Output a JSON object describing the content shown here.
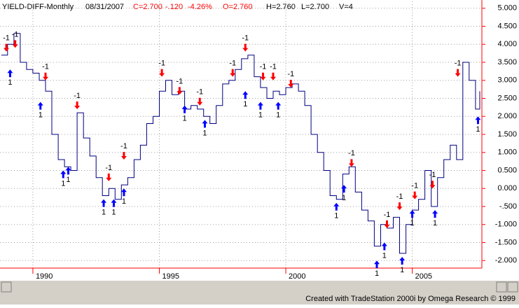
{
  "chart_data": {
    "type": "line",
    "title": "YIELD-DIFF-Monthly",
    "info": [
      {
        "text": "08/31/2007",
        "color": "#000000"
      },
      {
        "text": "C=2.700",
        "color": "#ff0000"
      },
      {
        "text": "-.120",
        "color": "#ff0000"
      },
      {
        "text": "-4.26%",
        "color": "#ff0000"
      },
      {
        "text": "O=2.760",
        "color": "#ff0000"
      },
      {
        "text": "H=2.760",
        "color": "#000000"
      },
      {
        "text": "L=2.700",
        "color": "#000000"
      },
      {
        "text": "V=4",
        "color": "#000000"
      }
    ],
    "credit": "Created with TradeStation 2000i by Omega Research © 1999",
    "color": "#000080",
    "axis_color": "#ff0000",
    "grid": true,
    "xlim": [
      1988.7,
      2007.67
    ],
    "xticks": [
      1990,
      1995,
      2000,
      2005
    ],
    "ylim": [
      -2.21,
      5.19
    ],
    "yticks": [
      {
        "value": 5,
        "label": "5.000"
      },
      {
        "value": 4.5,
        "label": "4.500"
      },
      {
        "value": 4,
        "label": "4.000"
      },
      {
        "value": 3.5,
        "label": "3.500"
      },
      {
        "value": 3,
        "label": "3.000"
      },
      {
        "value": 2.5,
        "label": "2.500"
      },
      {
        "value": 2,
        "label": "2.000"
      },
      {
        "value": 1.5,
        "label": "1.500"
      },
      {
        "value": 1,
        "label": "1.000"
      },
      {
        "value": 0.5,
        "label": "0.500"
      },
      {
        "value": 0,
        "label": "0.000"
      },
      {
        "value": -0.5,
        "label": "-.500"
      },
      {
        "value": -1,
        "label": "-1.000"
      },
      {
        "value": -1.5,
        "label": "-1.500"
      },
      {
        "value": -2,
        "label": "-2.000"
      }
    ],
    "x": [
      1988.75,
      1989,
      1989.25,
      1989.5,
      1989.75,
      1990,
      1990.25,
      1990.5,
      1990.75,
      1991,
      1991.25,
      1991.5,
      1991.75,
      1992,
      1992.25,
      1992.5,
      1992.75,
      1993,
      1993.25,
      1993.5,
      1993.75,
      1994,
      1994.25,
      1994.5,
      1994.75,
      1995,
      1995.25,
      1995.5,
      1995.75,
      1996,
      1996.25,
      1996.5,
      1996.75,
      1997,
      1997.25,
      1997.5,
      1997.75,
      1998,
      1998.25,
      1998.5,
      1998.75,
      1999,
      1999.25,
      1999.5,
      1999.75,
      2000,
      2000.25,
      2000.5,
      2000.75,
      2001,
      2001.25,
      2001.5,
      2001.75,
      2002,
      2002.25,
      2002.5,
      2002.75,
      2003,
      2003.25,
      2003.5,
      2003.75,
      2004,
      2004.25,
      2004.5,
      2004.75,
      2005,
      2005.25,
      2005.5,
      2005.75,
      2006,
      2006.25,
      2006.5,
      2006.75,
      2007,
      2007.25,
      2007.5,
      2007.67
    ],
    "values": [
      3.7,
      4.0,
      4.3,
      3.5,
      3.3,
      3.2,
      3.0,
      2.7,
      1.5,
      0.8,
      0.6,
      0.5,
      2.1,
      1.4,
      0.9,
      0.3,
      -0.2,
      0.0,
      -0.3,
      0.1,
      0.3,
      0.8,
      1.2,
      1.8,
      2.0,
      2.7,
      3.0,
      2.6,
      2.7,
      2.2,
      2.3,
      2.2,
      2.0,
      1.8,
      2.3,
      2.9,
      3.0,
      3.3,
      3.6,
      3.7,
      3.1,
      2.8,
      2.5,
      2.7,
      2.6,
      2.8,
      2.9,
      2.7,
      2.3,
      1.5,
      1.0,
      0.5,
      -0.2,
      -0.3,
      0.4,
      0.6,
      -0.1,
      -0.6,
      -0.9,
      -1.6,
      -1.0,
      -1.1,
      -0.8,
      -1.8,
      -1.0,
      -0.6,
      -0.3,
      0.5,
      -0.5,
      0.3,
      0.8,
      1.2,
      0.8,
      3.5,
      3.0,
      2.2,
      2.7
    ],
    "buy_signals": {
      "label": "1",
      "color": "#0000ff",
      "x": [
        1989.1,
        1990.3,
        1991.2,
        1991.4,
        1992.8,
        1993.2,
        1993.6,
        1996.0,
        1996.8,
        1998.4,
        1999.0,
        1999.7,
        2002.0,
        2002.3,
        2003.6,
        2003.9,
        2004.6,
        2005.0,
        2005.9,
        2007.6
      ],
      "y": [
        3.3,
        2.4,
        0.5,
        0.6,
        -0.3,
        -0.3,
        0.0,
        2.3,
        1.9,
        2.7,
        2.4,
        2.4,
        -0.4,
        0.1,
        -2.0,
        -1.5,
        -1.9,
        -0.6,
        -0.6,
        2.0
      ]
    },
    "sell_signals": {
      "label": "-1",
      "color": "#ff0000",
      "x": [
        1988.95,
        1989.3,
        1990.5,
        1991.75,
        1993.0,
        1993.6,
        1995.1,
        1995.8,
        1996.6,
        1997.9,
        1998.4,
        1999.1,
        1999.5,
        2000.2,
        2002.6,
        2004.0,
        2004.5,
        2005.1,
        2005.8,
        2006.8
      ],
      "y": [
        3.8,
        3.9,
        3.0,
        2.2,
        0.2,
        0.8,
        3.1,
        2.6,
        2.3,
        3.1,
        3.8,
        3.0,
        3.0,
        2.8,
        0.6,
        -1.1,
        -0.6,
        -0.3,
        0.0,
        3.1
      ]
    }
  }
}
